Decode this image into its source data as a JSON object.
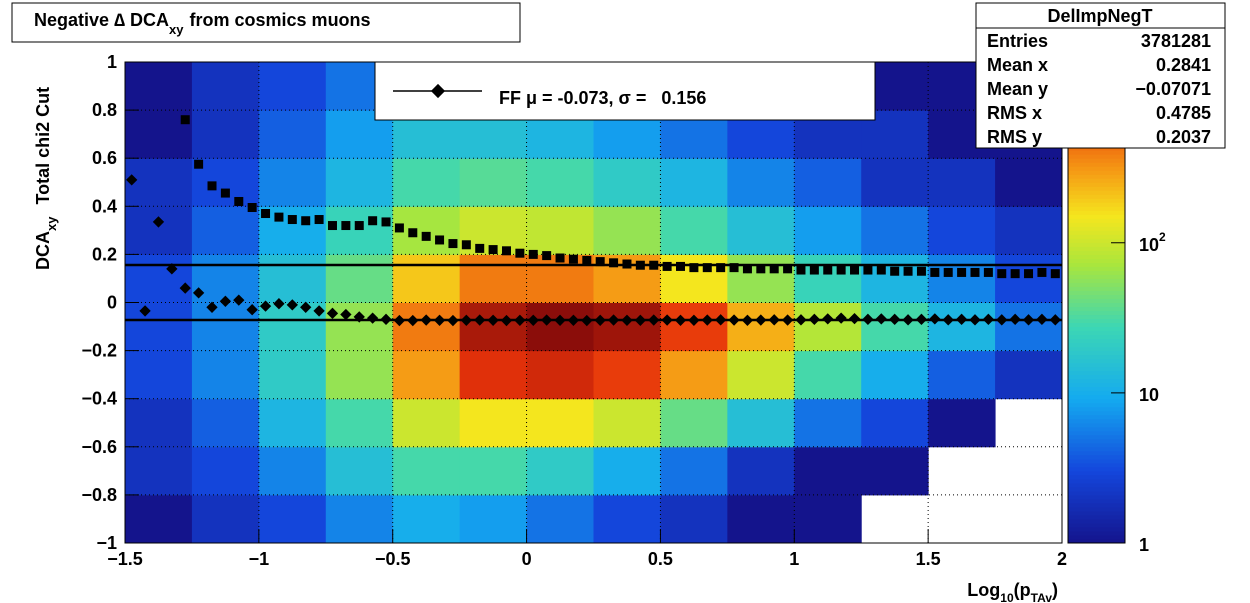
{
  "chart_data": {
    "type": "heatmap",
    "title": [
      "Negative ∆ DCA",
      "xy",
      "from cosmics muons"
    ],
    "x_label": [
      "Log",
      "10",
      "(p",
      "TAv",
      ")"
    ],
    "y_label": [
      "DCA",
      "xy",
      "Total chi2 Cut"
    ],
    "xlim": [
      -1.5,
      2
    ],
    "ylim": [
      -1,
      1
    ],
    "xticks": [
      {
        "value": -1.5,
        "label": "−1.5"
      },
      {
        "value": -1,
        "label": "−1"
      },
      {
        "value": -0.5,
        "label": "−0.5"
      },
      0,
      0.5,
      1,
      1.5,
      2
    ],
    "yticks": [
      {
        "value": -1,
        "label": "−1"
      },
      {
        "value": -0.8,
        "label": "−0.8"
      },
      {
        "value": -0.6,
        "label": "−0.6"
      },
      {
        "value": -0.4,
        "label": "−0.4"
      },
      {
        "value": -0.2,
        "label": "−0.2"
      },
      0,
      0.2,
      0.4,
      0.6,
      0.8,
      1
    ],
    "grid": true,
    "zlim": [
      1,
      1600
    ],
    "zlog": true,
    "zticks": [
      1,
      10,
      {
        "value": 100,
        "label": "10",
        "sup": "2"
      }
    ],
    "xbins": [
      -1.5,
      -1.25,
      -1,
      -0.75,
      -0.5,
      -0.25,
      0,
      0.25,
      0.5,
      0.75,
      1,
      1.25,
      1.5,
      1.75,
      2
    ],
    "ybins": [
      -1,
      -0.8,
      -0.6,
      -0.4,
      -0.2,
      0,
      0.2,
      0.4,
      0.6,
      0.8,
      1
    ],
    "z": [
      [
        1,
        2,
        3,
        6,
        10,
        8,
        5,
        3,
        2,
        1,
        1,
        null,
        null,
        null
      ],
      [
        2,
        3,
        6,
        15,
        30,
        30,
        20,
        10,
        5,
        2,
        1,
        1,
        null,
        null
      ],
      [
        2,
        4,
        12,
        30,
        100,
        150,
        150,
        100,
        40,
        15,
        5,
        3,
        1,
        null
      ],
      [
        3,
        6,
        20,
        60,
        300,
        800,
        900,
        700,
        300,
        100,
        30,
        10,
        4,
        2
      ],
      [
        3,
        6,
        20,
        60,
        400,
        1200,
        1500,
        1300,
        700,
        250,
        80,
        30,
        12,
        5
      ],
      [
        3,
        6,
        15,
        40,
        200,
        400,
        400,
        300,
        150,
        60,
        25,
        12,
        6,
        3
      ],
      [
        2,
        4,
        10,
        25,
        70,
        100,
        90,
        60,
        30,
        15,
        8,
        5,
        3,
        2
      ],
      [
        2,
        3,
        6,
        12,
        30,
        35,
        30,
        20,
        12,
        6,
        4,
        2,
        2,
        1
      ],
      [
        1,
        2,
        4,
        8,
        15,
        15,
        12,
        8,
        5,
        3,
        2,
        2,
        1,
        1
      ],
      [
        1,
        2,
        3,
        5,
        8,
        8,
        6,
        4,
        3,
        2,
        2,
        1,
        1,
        1
      ]
    ],
    "x": [
      -1.475,
      -1.425,
      -1.375,
      -1.325,
      -1.275,
      -1.225,
      -1.175,
      -1.125,
      -1.075,
      -1.025,
      -0.975,
      -0.925,
      -0.875,
      -0.825,
      -0.775,
      -0.725,
      -0.675,
      -0.625,
      -0.575,
      -0.525,
      -0.475,
      -0.425,
      -0.375,
      -0.325,
      -0.275,
      -0.225,
      -0.175,
      -0.125,
      -0.075,
      -0.025,
      0.025,
      0.075,
      0.125,
      0.175,
      0.225,
      0.275,
      0.325,
      0.375,
      0.425,
      0.475,
      0.525,
      0.575,
      0.625,
      0.675,
      0.725,
      0.775,
      0.825,
      0.875,
      0.925,
      0.975,
      1.025,
      1.075,
      1.125,
      1.175,
      1.225,
      1.275,
      1.325,
      1.375,
      1.425,
      1.475,
      1.525,
      1.575,
      1.625,
      1.675,
      1.725,
      1.775,
      1.825,
      1.875,
      1.925,
      1.975
    ],
    "series": [
      {
        "marker": "diamond",
        "color": "#000000",
        "values": [
          0.51,
          -0.035,
          0.335,
          0.14,
          0.06,
          0.04,
          -0.02,
          0.005,
          0.01,
          -0.03,
          -0.015,
          -0.005,
          -0.01,
          -0.02,
          -0.035,
          -0.045,
          -0.05,
          -0.06,
          -0.065,
          -0.07,
          -0.075,
          -0.075,
          -0.073,
          -0.074,
          -0.075,
          -0.074,
          -0.073,
          -0.074,
          -0.075,
          -0.074,
          -0.074,
          -0.073,
          -0.074,
          -0.074,
          -0.075,
          -0.074,
          -0.073,
          -0.074,
          -0.074,
          -0.073,
          -0.073,
          -0.074,
          -0.074,
          -0.073,
          -0.072,
          -0.073,
          -0.074,
          -0.073,
          -0.072,
          -0.073,
          -0.072,
          -0.07,
          -0.068,
          -0.065,
          -0.067,
          -0.07,
          -0.068,
          -0.07,
          -0.072,
          -0.07,
          -0.068,
          -0.072,
          -0.07,
          -0.072,
          -0.07,
          -0.072,
          -0.07,
          -0.072,
          -0.07,
          -0.072
        ]
      },
      {
        "marker": "square",
        "color": "#000000",
        "values": [
          null,
          null,
          null,
          null,
          0.76,
          0.575,
          0.485,
          0.455,
          0.42,
          0.395,
          0.37,
          0.355,
          0.345,
          0.34,
          0.345,
          0.32,
          0.32,
          0.32,
          0.34,
          0.335,
          0.31,
          0.29,
          0.275,
          0.26,
          0.245,
          0.24,
          0.225,
          0.22,
          0.215,
          0.205,
          0.2,
          0.195,
          0.185,
          0.18,
          0.175,
          0.17,
          0.165,
          0.16,
          0.155,
          0.155,
          0.15,
          0.15,
          0.145,
          0.145,
          0.145,
          0.145,
          0.14,
          0.14,
          0.14,
          0.14,
          0.135,
          0.135,
          0.135,
          0.135,
          0.135,
          0.135,
          0.135,
          0.13,
          0.13,
          0.13,
          0.125,
          0.125,
          0.125,
          0.125,
          0.125,
          0.12,
          0.12,
          0.12,
          0.125,
          0.12
        ]
      }
    ],
    "fit_lines": [
      -0.073,
      0.156
    ],
    "legend_text": "FF μ = -0.073, σ =   0.156",
    "stats": {
      "title": "DelImpNegT",
      "rows": [
        [
          "Entries",
          "3781281"
        ],
        [
          "Mean x",
          "0.2841"
        ],
        [
          "Mean y",
          "−0.07071"
        ],
        [
          "RMS x",
          "0.4785"
        ],
        [
          "RMS y",
          "0.2037"
        ]
      ]
    }
  }
}
